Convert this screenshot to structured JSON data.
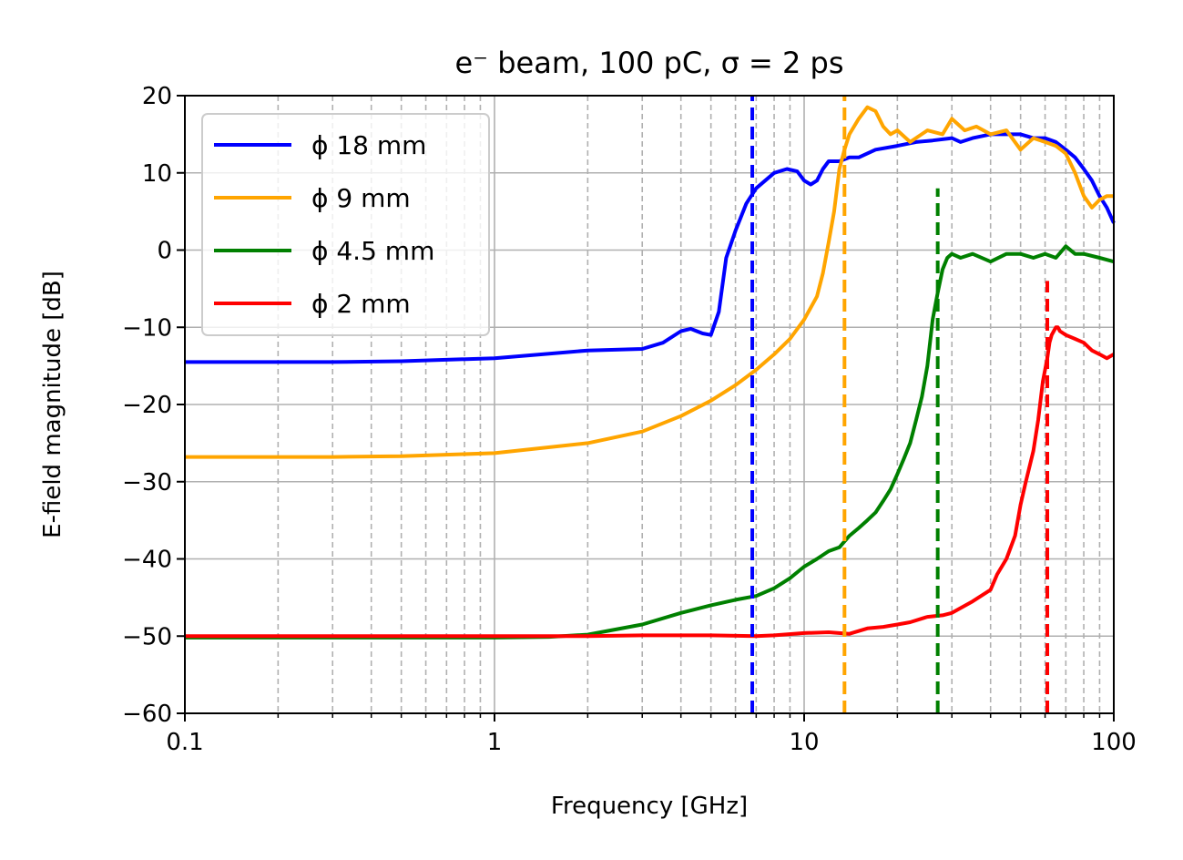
{
  "chart_data": {
    "type": "line",
    "title": "e⁻ beam, 100 pC, σ = 2 ps",
    "xlabel": "Frequency [GHz]",
    "ylabel": "E-field magnitude [dB]",
    "xscale": "log",
    "xlim": [
      0.1,
      100
    ],
    "ylim": [
      -60,
      20
    ],
    "xticks": [
      0.1,
      1,
      10,
      100
    ],
    "xtick_labels": [
      "0.1",
      "1",
      "10",
      "100"
    ],
    "yticks": [
      -60,
      -50,
      -40,
      -30,
      -20,
      -10,
      0,
      10,
      20
    ],
    "ytick_labels": [
      "−60",
      "−50",
      "−40",
      "−30",
      "−20",
      "−10",
      "0",
      "10",
      "20"
    ],
    "grid": true,
    "legend_position": "upper-left",
    "series": [
      {
        "name": "ϕ 18 mm",
        "color": "#0000ff",
        "x": [
          0.1,
          0.3,
          0.5,
          1.0,
          2.0,
          3.0,
          3.5,
          4.0,
          4.3,
          4.7,
          5.0,
          5.3,
          5.6,
          6.0,
          6.5,
          7.0,
          8.0,
          8.8,
          9.5,
          10.0,
          10.5,
          11.0,
          11.5,
          12.0,
          13.0,
          14.0,
          15.0,
          17.0,
          20.0,
          23.0,
          26.0,
          30.0,
          32.0,
          35.0,
          40.0,
          45.0,
          50.0,
          55.0,
          60.0,
          65.0,
          70.0,
          75.0,
          80.0,
          85.0,
          90.0,
          95.0,
          100.0
        ],
        "y": [
          -14.5,
          -14.5,
          -14.4,
          -14.0,
          -13.0,
          -12.8,
          -12.0,
          -10.5,
          -10.2,
          -10.8,
          -11.0,
          -8.0,
          -1.0,
          2.5,
          6.0,
          8.0,
          10.0,
          10.5,
          10.2,
          9.0,
          8.5,
          9.0,
          10.5,
          11.5,
          11.5,
          12.0,
          12.0,
          13.0,
          13.5,
          14.0,
          14.2,
          14.5,
          14.0,
          14.5,
          15.0,
          15.0,
          15.0,
          14.5,
          14.5,
          14.0,
          13.0,
          12.0,
          10.5,
          9.0,
          7.0,
          5.5,
          3.5
        ]
      },
      {
        "name": "ϕ 9 mm",
        "color": "#ffa500",
        "x": [
          0.1,
          0.3,
          0.5,
          1.0,
          2.0,
          3.0,
          4.0,
          5.0,
          6.0,
          7.0,
          8.0,
          9.0,
          10.0,
          11.0,
          11.5,
          12.0,
          12.5,
          13.0,
          13.5,
          14.0,
          15.0,
          16.0,
          17.0,
          18.0,
          19.0,
          20.0,
          22.0,
          25.0,
          28.0,
          30.0,
          33.0,
          36.0,
          40.0,
          45.0,
          50.0,
          55.0,
          60.0,
          65.0,
          70.0,
          75.0,
          80.0,
          85.0,
          90.0,
          95.0,
          100.0
        ],
        "y": [
          -26.8,
          -26.8,
          -26.7,
          -26.3,
          -25.0,
          -23.5,
          -21.5,
          -19.5,
          -17.5,
          -15.5,
          -13.5,
          -11.5,
          -9.0,
          -6.0,
          -3.0,
          1.0,
          5.0,
          10.5,
          13.0,
          15.0,
          17.0,
          18.5,
          18.0,
          16.0,
          15.0,
          15.5,
          14.0,
          15.5,
          15.0,
          17.0,
          15.5,
          16.0,
          15.0,
          15.5,
          13.0,
          14.5,
          14.0,
          13.5,
          12.5,
          10.0,
          7.0,
          5.5,
          6.5,
          7.0,
          7.0
        ]
      },
      {
        "name": "ϕ 4.5 mm",
        "color": "#008000",
        "x": [
          0.1,
          0.5,
          1.0,
          1.5,
          2.0,
          3.0,
          4.0,
          5.0,
          6.0,
          7.0,
          8.0,
          9.0,
          10.0,
          11.0,
          12.0,
          13.0,
          14.0,
          15.0,
          16.0,
          17.0,
          18.0,
          19.0,
          20.0,
          21.0,
          22.0,
          23.0,
          24.0,
          25.0,
          26.0,
          27.0,
          28.0,
          29.0,
          30.0,
          32.0,
          35.0,
          40.0,
          45.0,
          50.0,
          55.0,
          60.0,
          65.0,
          70.0,
          75.0,
          80.0,
          90.0,
          100.0
        ],
        "y": [
          -50.2,
          -50.2,
          -50.2,
          -50.1,
          -49.8,
          -48.5,
          -47.0,
          -46.0,
          -45.3,
          -44.8,
          -43.8,
          -42.5,
          -41.0,
          -40.0,
          -39.0,
          -38.5,
          -37.0,
          -36.0,
          -35.0,
          -34.0,
          -32.5,
          -31.0,
          -29.0,
          -27.0,
          -25.0,
          -22.0,
          -19.0,
          -15.0,
          -9.0,
          -5.5,
          -2.5,
          -1.0,
          -0.5,
          -1.0,
          -0.5,
          -1.5,
          -0.5,
          -0.5,
          -1.0,
          -0.5,
          -1.0,
          0.5,
          -0.5,
          -0.5,
          -1.0,
          -1.5
        ]
      },
      {
        "name": "ϕ 2 mm",
        "color": "#ff0000",
        "x": [
          0.1,
          1.0,
          2.0,
          3.0,
          5.0,
          7.0,
          8.0,
          10.0,
          12.0,
          14.0,
          16.0,
          18.0,
          20.0,
          22.0,
          25.0,
          28.0,
          30.0,
          35.0,
          40.0,
          42.0,
          45.0,
          48.0,
          50.0,
          52.0,
          55.0,
          57.0,
          59.0,
          61.0,
          62.0,
          63.0,
          64.0,
          65.0,
          66.0,
          67.0,
          70.0,
          75.0,
          80.0,
          85.0,
          90.0,
          95.0,
          100.0
        ],
        "y": [
          -50.0,
          -50.0,
          -50.0,
          -49.9,
          -49.9,
          -50.0,
          -49.9,
          -49.6,
          -49.5,
          -49.7,
          -49.0,
          -48.8,
          -48.5,
          -48.2,
          -47.5,
          -47.3,
          -47.0,
          -45.5,
          -44.0,
          -42.0,
          -40.0,
          -37.0,
          -33.0,
          -30.0,
          -26.0,
          -22.0,
          -17.0,
          -14.0,
          -12.0,
          -11.0,
          -10.5,
          -10.0,
          -10.0,
          -10.5,
          -11.0,
          -11.5,
          -12.0,
          -13.0,
          -13.5,
          -14.0,
          -13.5
        ]
      }
    ],
    "vlines": [
      {
        "x": 6.8,
        "color": "#0000ff",
        "ymin": -60,
        "ymax": 20
      },
      {
        "x": 13.5,
        "color": "#ffa500",
        "ymin": -60,
        "ymax": 20
      },
      {
        "x": 27.0,
        "color": "#008000",
        "ymin": -60,
        "ymax": 8
      },
      {
        "x": 61.0,
        "color": "#ff0000",
        "ymin": -60,
        "ymax": -4
      }
    ]
  }
}
